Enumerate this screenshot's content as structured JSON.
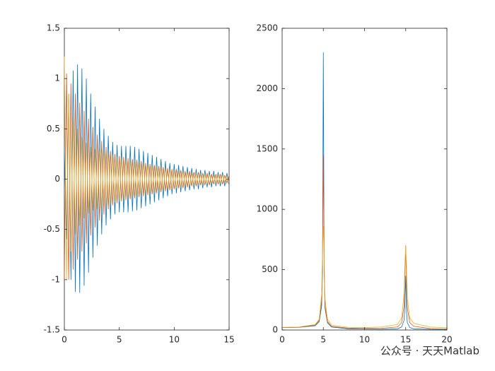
{
  "chart_data": [
    {
      "type": "line",
      "x": [
        0,
        0.2,
        0.4,
        0.6,
        0.8,
        1,
        1.2,
        1.4,
        1.6,
        1.8,
        2,
        2.2,
        2.4,
        2.6,
        2.8,
        3,
        3.2,
        3.4,
        3.6,
        3.8,
        4,
        4.2,
        4.4,
        4.6,
        4.8,
        5,
        5.2,
        5.4,
        5.6,
        5.8,
        6,
        6.2,
        6.4,
        6.6,
        6.8,
        7,
        7.2,
        7.4,
        7.6,
        7.8,
        8,
        8.2,
        8.4,
        8.6,
        8.8,
        9,
        9.2,
        9.4,
        9.6,
        9.8,
        10,
        10.2,
        10.4,
        10.6,
        10.8,
        11,
        11.2,
        11.4,
        11.6,
        11.8,
        12,
        12.2,
        12.4,
        12.6,
        12.8,
        13,
        13.2,
        13.4,
        13.6,
        13.8,
        14,
        14.2,
        14.4,
        14.6,
        14.8,
        15
      ],
      "series": [
        {
          "color": "#0072BD",
          "values": [
            0.3,
            -0.6,
            0.85,
            -1.0,
            1.08,
            -1.12,
            1.14,
            -1.13,
            1.1,
            -1.06,
            1.0,
            -0.93,
            0.85,
            -0.78,
            0.72,
            -0.66,
            0.6,
            -0.55,
            0.5,
            -0.46,
            0.43,
            -0.4,
            0.37,
            -0.35,
            0.34,
            -0.33,
            0.33,
            -0.33,
            0.33,
            -0.33,
            0.33,
            -0.32,
            0.32,
            -0.31,
            0.3,
            -0.29,
            0.28,
            -0.27,
            0.26,
            -0.25,
            0.24,
            -0.23,
            0.22,
            -0.21,
            0.2,
            -0.19,
            0.18,
            -0.17,
            0.16,
            -0.15,
            0.15,
            -0.14,
            0.14,
            -0.13,
            0.13,
            -0.12,
            0.12,
            -0.11,
            0.11,
            -0.1,
            0.1,
            -0.1,
            0.09,
            -0.09,
            0.09,
            -0.08,
            0.08,
            -0.08,
            0.08,
            -0.07,
            0.07,
            -0.07,
            0.07,
            -0.07,
            0.06,
            -0.06
          ]
        },
        {
          "color": "#D95319",
          "values": [
            -1.0,
            1.05,
            -1.0,
            0.95,
            -0.9,
            0.85,
            -0.8,
            0.76,
            -0.72,
            0.68,
            -0.64,
            0.6,
            -0.56,
            0.52,
            -0.48,
            0.44,
            -0.41,
            0.38,
            -0.35,
            0.32,
            -0.3,
            0.28,
            -0.26,
            0.25,
            -0.24,
            0.23,
            -0.22,
            0.22,
            -0.21,
            0.21,
            -0.2,
            0.2,
            -0.19,
            0.19,
            -0.18,
            0.18,
            -0.17,
            0.16,
            -0.16,
            0.15,
            -0.15,
            0.14,
            -0.14,
            0.13,
            -0.13,
            0.12,
            -0.12,
            0.11,
            -0.11,
            0.1,
            -0.1,
            0.1,
            -0.09,
            0.09,
            -0.09,
            0.08,
            -0.08,
            0.08,
            -0.07,
            0.07,
            -0.07,
            0.07,
            -0.06,
            0.06,
            -0.06,
            0.06,
            -0.06,
            0.05,
            -0.05,
            0.05,
            -0.05,
            0.05,
            -0.05,
            0.04,
            -0.04,
            0.04
          ]
        },
        {
          "color": "#EDB120",
          "values": [
            1.22,
            -1.0,
            0.85,
            -0.72,
            0.62,
            -0.55,
            0.5,
            -0.46,
            0.42,
            -0.39,
            0.36,
            -0.34,
            0.32,
            -0.31,
            0.3,
            -0.3,
            0.3,
            -0.29,
            0.28,
            -0.27,
            0.26,
            -0.25,
            0.24,
            -0.23,
            0.22,
            -0.22,
            0.21,
            -0.2,
            0.2,
            -0.19,
            0.19,
            -0.18,
            0.18,
            -0.17,
            0.17,
            -0.16,
            0.16,
            -0.15,
            0.15,
            -0.14,
            0.14,
            -0.13,
            0.13,
            -0.12,
            0.12,
            -0.11,
            0.11,
            -0.1,
            0.1,
            -0.1,
            0.09,
            -0.09,
            0.08,
            -0.08,
            0.08,
            -0.07,
            0.07,
            -0.07,
            0.06,
            -0.06,
            0.06,
            -0.06,
            0.05,
            -0.05,
            0.05,
            -0.05,
            0.05,
            -0.04,
            0.04,
            -0.04,
            0.04,
            -0.04,
            0.04,
            -0.03,
            0.03,
            -0.03
          ]
        }
      ],
      "xlim": [
        0,
        15
      ],
      "xticks": [
        0,
        5,
        10,
        15
      ],
      "ylim": [
        -1.5,
        1.5
      ],
      "yticks": [
        -1.5,
        -1,
        -0.5,
        0,
        0.5,
        1,
        1.5
      ]
    },
    {
      "type": "line",
      "x": [
        0,
        2,
        4,
        4.5,
        4.8,
        4.9,
        5,
        5.1,
        5.2,
        5.5,
        6,
        8,
        10,
        12,
        14,
        14.5,
        14.8,
        14.9,
        15,
        15.1,
        15.2,
        15.5,
        16,
        18,
        20
      ],
      "series": [
        {
          "color": "#0072BD",
          "values": [
            20,
            22,
            35,
            70,
            200,
            500,
            2300,
            500,
            180,
            60,
            25,
            10,
            8,
            6,
            10,
            25,
            80,
            200,
            450,
            150,
            60,
            20,
            10,
            5,
            3
          ]
        },
        {
          "color": "#D95319",
          "values": [
            20,
            23,
            40,
            80,
            250,
            600,
            1450,
            550,
            200,
            70,
            30,
            15,
            12,
            14,
            25,
            60,
            200,
            450,
            700,
            400,
            180,
            60,
            30,
            12,
            8
          ]
        },
        {
          "color": "#EDB120",
          "values": [
            22,
            25,
            45,
            90,
            300,
            650,
            860,
            600,
            260,
            90,
            40,
            22,
            20,
            25,
            45,
            100,
            300,
            550,
            690,
            520,
            260,
            100,
            55,
            25,
            18
          ]
        }
      ],
      "xlim": [
        0,
        20
      ],
      "xticks": [
        0,
        5,
        10,
        15,
        20
      ],
      "ylim": [
        0,
        2500
      ],
      "yticks": [
        0,
        500,
        1000,
        1500,
        2000,
        2500
      ]
    }
  ],
  "watermark": "公众号 · 天天Matlab"
}
